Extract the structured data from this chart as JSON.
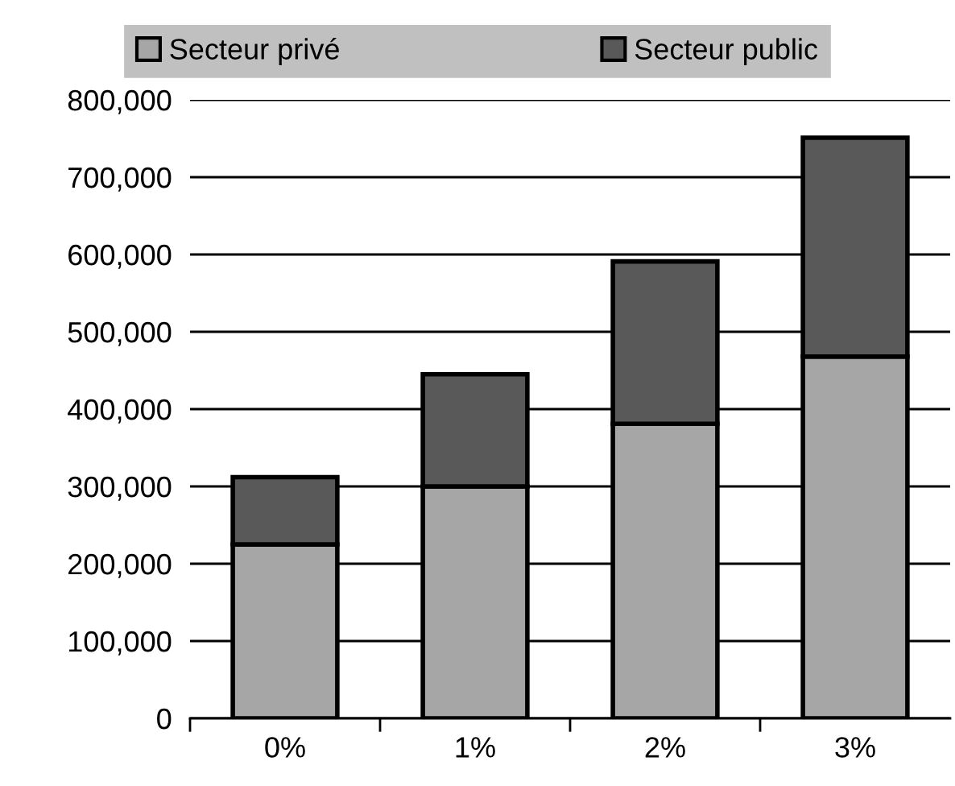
{
  "chart_data": {
    "type": "bar",
    "stacked": true,
    "categories": [
      "0%",
      "1%",
      "2%",
      "3%"
    ],
    "series": [
      {
        "name": "Secteur privé",
        "color": "#a6a6a6",
        "values": [
          225000,
          300000,
          381000,
          468000
        ]
      },
      {
        "name": "Secteur public",
        "color": "#595959",
        "values": [
          87000,
          145000,
          210000,
          283000
        ]
      }
    ],
    "ylim": [
      0,
      800000
    ],
    "yticks": [
      {
        "value": 0,
        "label": "0"
      },
      {
        "value": 100000,
        "label": "100,000"
      },
      {
        "value": 200000,
        "label": "200,000"
      },
      {
        "value": 300000,
        "label": "300,000"
      },
      {
        "value": 400000,
        "label": "400,000"
      },
      {
        "value": 500000,
        "label": "500,000"
      },
      {
        "value": 600000,
        "label": "600,000"
      },
      {
        "value": 700000,
        "label": "700,000"
      },
      {
        "value": 800000,
        "label": "800,000"
      }
    ],
    "grid": "y",
    "legend": "top"
  }
}
